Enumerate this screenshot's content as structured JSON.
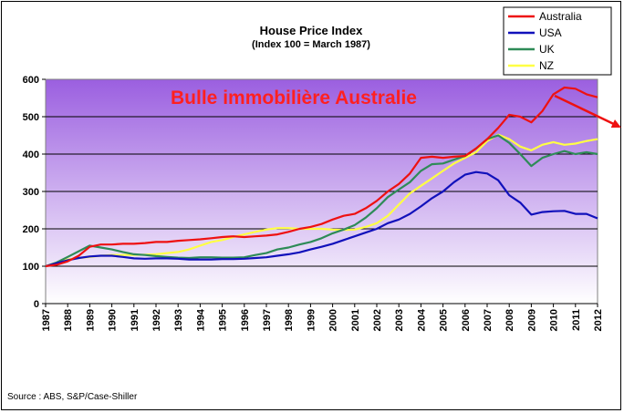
{
  "chart_data": {
    "type": "line",
    "title": "House Price Index",
    "subtitle": "(Index 100 = March 1987)",
    "annotation": "Bulle immobilière Australie",
    "annotation_color": "#ff2020",
    "source": "Source : ABS, S&P/Case-Shiller",
    "ylim": [
      0,
      600
    ],
    "yticks": [
      "0",
      "100",
      "200",
      "300",
      "400",
      "500",
      "600"
    ],
    "xlim": [
      1987,
      2012
    ],
    "xticks": [
      "1987",
      "1988",
      "1989",
      "1990",
      "1991",
      "1992",
      "1993",
      "1994",
      "1995",
      "1996",
      "1997",
      "1998",
      "1999",
      "2000",
      "2001",
      "2002",
      "2003",
      "2004",
      "2005",
      "2006",
      "2007",
      "2008",
      "2009",
      "2010",
      "2011",
      "2012"
    ],
    "grid": true,
    "legend_position": "top-right",
    "plot_background": [
      "#9b5fe0",
      "#ffffff"
    ],
    "series": [
      {
        "name": "Australia",
        "color": "#ee1111",
        "points": [
          [
            1987,
            100
          ],
          [
            1987.5,
            104
          ],
          [
            1988,
            113
          ],
          [
            1988.5,
            128
          ],
          [
            1989,
            152
          ],
          [
            1989.5,
            158
          ],
          [
            1990,
            158
          ],
          [
            1990.5,
            160
          ],
          [
            1991,
            160
          ],
          [
            1991.5,
            162
          ],
          [
            1992,
            165
          ],
          [
            1992.5,
            165
          ],
          [
            1993,
            168
          ],
          [
            1993.5,
            170
          ],
          [
            1994,
            172
          ],
          [
            1994.5,
            175
          ],
          [
            1995,
            178
          ],
          [
            1995.5,
            180
          ],
          [
            1996,
            178
          ],
          [
            1996.5,
            180
          ],
          [
            1997,
            182
          ],
          [
            1997.5,
            185
          ],
          [
            1998,
            192
          ],
          [
            1998.5,
            200
          ],
          [
            1999,
            205
          ],
          [
            1999.5,
            213
          ],
          [
            2000,
            225
          ],
          [
            2000.5,
            235
          ],
          [
            2001,
            240
          ],
          [
            2001.5,
            255
          ],
          [
            2002,
            275
          ],
          [
            2002.5,
            300
          ],
          [
            2003,
            320
          ],
          [
            2003.5,
            348
          ],
          [
            2004,
            390
          ],
          [
            2004.5,
            393
          ],
          [
            2005,
            390
          ],
          [
            2005.5,
            393
          ],
          [
            2006,
            395
          ],
          [
            2006.5,
            415
          ],
          [
            2007,
            440
          ],
          [
            2007.5,
            470
          ],
          [
            2008,
            505
          ],
          [
            2008.5,
            500
          ],
          [
            2009,
            485
          ],
          [
            2009.5,
            515
          ],
          [
            2010,
            560
          ],
          [
            2010.5,
            578
          ],
          [
            2011,
            575
          ],
          [
            2011.5,
            560
          ],
          [
            2012,
            552
          ]
        ]
      },
      {
        "name": "USA",
        "color": "#1111bb",
        "points": [
          [
            1987,
            100
          ],
          [
            1987.5,
            108
          ],
          [
            1988,
            116
          ],
          [
            1988.5,
            122
          ],
          [
            1989,
            126
          ],
          [
            1989.5,
            128
          ],
          [
            1990,
            128
          ],
          [
            1990.5,
            125
          ],
          [
            1991,
            121
          ],
          [
            1991.5,
            120
          ],
          [
            1992,
            121
          ],
          [
            1992.5,
            121
          ],
          [
            1993,
            120
          ],
          [
            1993.5,
            118
          ],
          [
            1994,
            118
          ],
          [
            1994.5,
            118
          ],
          [
            1995,
            119
          ],
          [
            1995.5,
            119
          ],
          [
            1996,
            120
          ],
          [
            1996.5,
            122
          ],
          [
            1997,
            124
          ],
          [
            1997.5,
            128
          ],
          [
            1998,
            132
          ],
          [
            1998.5,
            137
          ],
          [
            1999,
            145
          ],
          [
            1999.5,
            152
          ],
          [
            2000,
            160
          ],
          [
            2000.5,
            170
          ],
          [
            2001,
            180
          ],
          [
            2001.5,
            190
          ],
          [
            2002,
            200
          ],
          [
            2002.5,
            215
          ],
          [
            2003,
            225
          ],
          [
            2003.5,
            240
          ],
          [
            2004,
            260
          ],
          [
            2004.5,
            282
          ],
          [
            2005,
            300
          ],
          [
            2005.5,
            325
          ],
          [
            2006,
            345
          ],
          [
            2006.5,
            352
          ],
          [
            2007,
            348
          ],
          [
            2007.5,
            330
          ],
          [
            2008,
            290
          ],
          [
            2008.5,
            270
          ],
          [
            2009,
            238
          ],
          [
            2009.5,
            245
          ],
          [
            2010,
            247
          ],
          [
            2010.5,
            248
          ],
          [
            2011,
            240
          ],
          [
            2011.5,
            240
          ],
          [
            2012,
            228
          ]
        ]
      },
      {
        "name": "UK",
        "color": "#2e8b57",
        "points": [
          [
            1987,
            100
          ],
          [
            1987.5,
            110
          ],
          [
            1988,
            125
          ],
          [
            1988.5,
            140
          ],
          [
            1989,
            155
          ],
          [
            1989.5,
            150
          ],
          [
            1990,
            145
          ],
          [
            1990.5,
            138
          ],
          [
            1991,
            132
          ],
          [
            1991.5,
            130
          ],
          [
            1992,
            127
          ],
          [
            1992.5,
            125
          ],
          [
            1993,
            123
          ],
          [
            1993.5,
            122
          ],
          [
            1994,
            124
          ],
          [
            1994.5,
            124
          ],
          [
            1995,
            123
          ],
          [
            1995.5,
            123
          ],
          [
            1996,
            124
          ],
          [
            1996.5,
            130
          ],
          [
            1997,
            135
          ],
          [
            1997.5,
            145
          ],
          [
            1998,
            150
          ],
          [
            1998.5,
            158
          ],
          [
            1999,
            165
          ],
          [
            1999.5,
            175
          ],
          [
            2000,
            188
          ],
          [
            2000.5,
            198
          ],
          [
            2001,
            210
          ],
          [
            2001.5,
            230
          ],
          [
            2002,
            255
          ],
          [
            2002.5,
            285
          ],
          [
            2003,
            305
          ],
          [
            2003.5,
            325
          ],
          [
            2004,
            355
          ],
          [
            2004.5,
            373
          ],
          [
            2005,
            375
          ],
          [
            2005.5,
            385
          ],
          [
            2006,
            395
          ],
          [
            2006.5,
            415
          ],
          [
            2007,
            440
          ],
          [
            2007.5,
            450
          ],
          [
            2008,
            430
          ],
          [
            2008.5,
            400
          ],
          [
            2009,
            368
          ],
          [
            2009.5,
            390
          ],
          [
            2010,
            400
          ],
          [
            2010.5,
            408
          ],
          [
            2011,
            400
          ],
          [
            2011.5,
            405
          ],
          [
            2012,
            400
          ]
        ]
      },
      {
        "name": "NZ",
        "color": "#ffff44",
        "points": [
          [
            1987,
            100
          ],
          [
            1987.5,
            110
          ],
          [
            1988,
            118
          ],
          [
            1988.5,
            122
          ],
          [
            1989,
            125
          ],
          [
            1989.5,
            128
          ],
          [
            1990,
            130
          ],
          [
            1990.5,
            130
          ],
          [
            1991,
            130
          ],
          [
            1991.5,
            131
          ],
          [
            1992,
            132
          ],
          [
            1992.5,
            135
          ],
          [
            1993,
            138
          ],
          [
            1993.5,
            145
          ],
          [
            1994,
            155
          ],
          [
            1994.5,
            165
          ],
          [
            1995,
            170
          ],
          [
            1995.5,
            178
          ],
          [
            1996,
            185
          ],
          [
            1996.5,
            192
          ],
          [
            1997,
            198
          ],
          [
            1997.5,
            202
          ],
          [
            1998,
            202
          ],
          [
            1998.5,
            200
          ],
          [
            1999,
            200
          ],
          [
            1999.5,
            200
          ],
          [
            2000,
            198
          ],
          [
            2000.5,
            197
          ],
          [
            2001,
            198
          ],
          [
            2001.5,
            205
          ],
          [
            2002,
            215
          ],
          [
            2002.5,
            235
          ],
          [
            2003,
            265
          ],
          [
            2003.5,
            295
          ],
          [
            2004,
            315
          ],
          [
            2004.5,
            335
          ],
          [
            2005,
            355
          ],
          [
            2005.5,
            375
          ],
          [
            2006,
            390
          ],
          [
            2006.5,
            405
          ],
          [
            2007,
            435
          ],
          [
            2007.5,
            452
          ],
          [
            2008,
            440
          ],
          [
            2008.5,
            420
          ],
          [
            2009,
            410
          ],
          [
            2009.5,
            425
          ],
          [
            2010,
            432
          ],
          [
            2010.5,
            425
          ],
          [
            2011,
            428
          ],
          [
            2011.5,
            435
          ],
          [
            2012,
            440
          ]
        ]
      }
    ]
  }
}
